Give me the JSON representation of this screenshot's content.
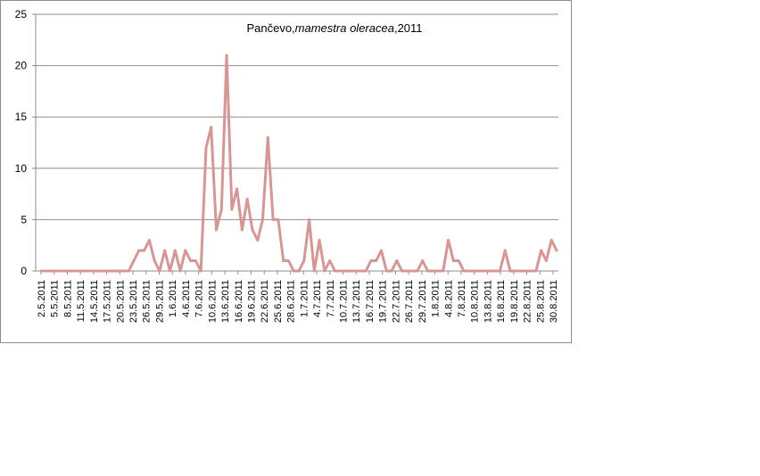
{
  "chart_data": {
    "type": "line",
    "title_parts": [
      "Pančevo,",
      "mamestra oleracea",
      ",2011"
    ],
    "xlabel": "",
    "ylabel": "",
    "ylim": [
      0,
      25
    ],
    "yticks": [
      0,
      5,
      10,
      15,
      20,
      25
    ],
    "grid": true,
    "legend": "none",
    "line_color": "#d99594",
    "x_tick_labels": [
      "2.5.2011",
      "5.5.2011",
      "8.5.2011",
      "11.5.2011",
      "14.5.2011",
      "17.5.2011",
      "20.5.2011",
      "23.5.2011",
      "26.5.2011",
      "29.5.2011",
      "1.6.2011",
      "4.6.2011",
      "7.6.2011",
      "10.6.2011",
      "13.6.2011",
      "16.6.2011",
      "19.6.2011",
      "22.6.2011",
      "25.6.2011",
      "28.6.2011",
      "1.7.2011",
      "4.7.2011",
      "7.7.2011",
      "10.7.2011",
      "13.7.2011",
      "16.7.2011",
      "19.7.2011",
      "22.7.2011",
      "26.7.2011",
      "29.7.2011",
      "1.8.2011",
      "4.8.2011",
      "7.8.2011",
      "10.8.2011",
      "13.8.2011",
      "16.8.2011",
      "19.8.2011",
      "22.8.2011",
      "25.8.2011",
      "30.8.2011"
    ],
    "values": [
      0,
      0,
      0,
      0,
      0,
      0,
      0,
      0,
      0,
      0,
      0,
      0,
      0,
      0,
      0,
      0,
      0,
      0,
      1,
      2,
      2,
      3,
      1,
      0,
      2,
      0,
      2,
      0,
      2,
      1,
      1,
      0,
      12,
      14,
      4,
      6,
      21,
      6,
      8,
      4,
      7,
      4,
      3,
      5,
      13,
      5,
      5,
      1,
      1,
      0,
      0,
      1,
      5,
      0,
      3,
      0,
      1,
      0,
      0,
      0,
      0,
      0,
      0,
      0,
      1,
      1,
      2,
      0,
      0,
      1,
      0,
      0,
      0,
      0,
      1,
      0,
      0,
      0,
      0,
      3,
      1,
      1,
      0,
      0,
      0,
      0,
      0,
      0,
      0,
      0,
      2,
      0,
      0,
      0,
      0,
      0,
      0,
      2,
      1,
      3,
      2
    ]
  }
}
